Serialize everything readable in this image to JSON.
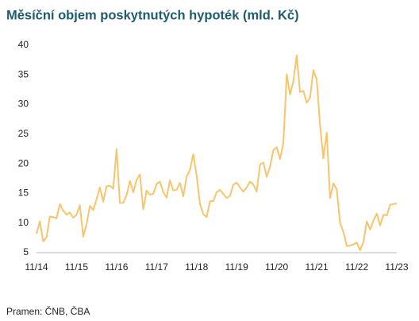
{
  "chart_data": {
    "type": "line",
    "title": "Měsíční objem poskytnutých hypoték (mld. Kč)",
    "source": "Pramen: ČNB, ČBA",
    "categories": [
      "11/14",
      null,
      null,
      null,
      null,
      null,
      null,
      null,
      null,
      null,
      null,
      null,
      "11/15",
      null,
      null,
      null,
      null,
      null,
      null,
      null,
      null,
      null,
      null,
      null,
      "11/16",
      null,
      null,
      null,
      null,
      null,
      null,
      null,
      null,
      null,
      null,
      null,
      "11/17",
      null,
      null,
      null,
      null,
      null,
      null,
      null,
      null,
      null,
      null,
      null,
      "11/18",
      null,
      null,
      null,
      null,
      null,
      null,
      null,
      null,
      null,
      null,
      null,
      "11/19",
      null,
      null,
      null,
      null,
      null,
      null,
      null,
      null,
      null,
      null,
      null,
      "11/20",
      null,
      null,
      null,
      null,
      null,
      null,
      null,
      null,
      null,
      null,
      null,
      "11/21",
      null,
      null,
      null,
      null,
      null,
      null,
      null,
      null,
      null,
      null,
      null,
      "11/22",
      null,
      null,
      null,
      null,
      null,
      null,
      null,
      null,
      null,
      null,
      null,
      "11/23"
    ],
    "values": [
      8.2,
      10.3,
      6.9,
      7.6,
      11.1,
      11.0,
      10.8,
      13.2,
      12.1,
      11.4,
      11.8,
      10.9,
      11.4,
      13.0,
      7.7,
      9.8,
      12.9,
      12.2,
      14.0,
      16.0,
      13.6,
      16.2,
      16.3,
      15.8,
      22.5,
      13.4,
      13.4,
      14.7,
      17.1,
      15.2,
      17.3,
      18.2,
      12.3,
      15.5,
      14.8,
      14.9,
      16.6,
      17.0,
      15.2,
      14.3,
      17.2,
      15.5,
      15.6,
      16.8,
      14.5,
      17.8,
      19.0,
      21.6,
      18.0,
      13.2,
      11.5,
      11.0,
      13.7,
      13.7,
      15.2,
      15.6,
      14.9,
      14.2,
      14.6,
      16.5,
      16.8,
      16.0,
      15.3,
      16.0,
      17.0,
      16.5,
      15.3,
      19.9,
      20.2,
      17.8,
      19.5,
      22.3,
      22.8,
      20.8,
      23.5,
      35.1,
      31.7,
      34.0,
      38.3,
      32.1,
      32.3,
      30.3,
      31.2,
      35.8,
      34.2,
      26.5,
      20.9,
      25.3,
      14.2,
      16.7,
      15.7,
      10.0,
      8.5,
      6.1,
      6.2,
      6.4,
      6.7,
      5.4,
      6.8,
      10.3,
      8.9,
      10.4,
      11.6,
      9.6,
      11.4,
      11.3,
      13.1,
      13.2,
      13.3
    ],
    "color": "#f8c46c",
    "ylim": [
      5,
      40
    ],
    "yticks": [
      5,
      10,
      15,
      20,
      25,
      30,
      35,
      40
    ],
    "grid": false
  }
}
